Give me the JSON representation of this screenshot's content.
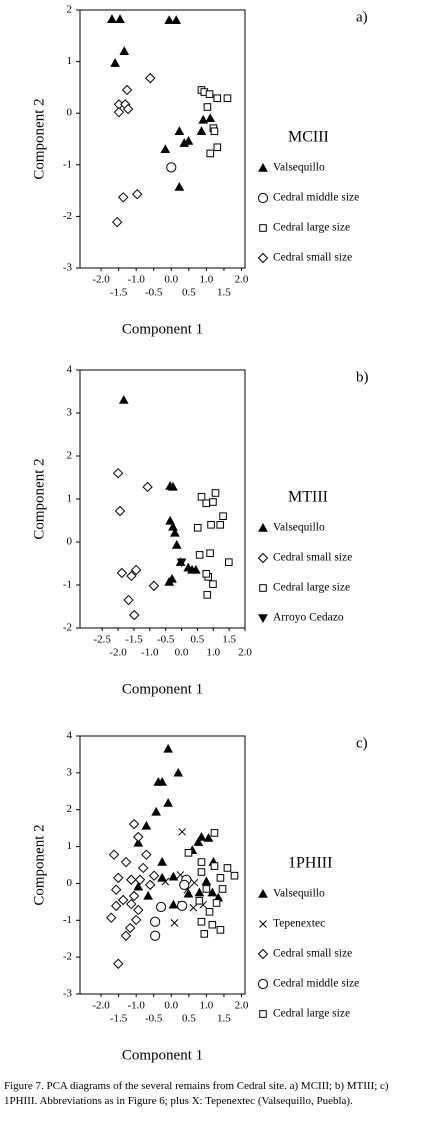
{
  "chart_data": [
    {
      "type": "scatter",
      "panel_label": "a)",
      "legend_title": "MCIII",
      "x_label": "Component  1",
      "y_label": "Component  2",
      "xlim": [
        -2.6,
        2.1
      ],
      "ylim": [
        -3,
        2
      ],
      "xticks": [
        {
          "value": -2,
          "label": "-2.0"
        },
        {
          "value": -1.5,
          "label": "-1.5"
        },
        {
          "value": -1,
          "label": "-1.0"
        },
        {
          "value": -0.5,
          "label": "-0.5"
        },
        {
          "value": 0,
          "label": "0.0"
        },
        {
          "value": 0.5,
          "label": "0.5"
        },
        {
          "value": 1,
          "label": "1.0"
        },
        {
          "value": 1.5,
          "label": "1.5"
        },
        {
          "value": 2,
          "label": "2.0"
        }
      ],
      "yticks": [
        2,
        1,
        0,
        -1,
        -2,
        -3
      ],
      "series": [
        {
          "name": "Valsequillo",
          "marker": "triangle",
          "color": "#000000",
          "x": [
            -1.69,
            -1.46,
            -0.06,
            0.14,
            -1.34,
            -1.6,
            0.23,
            0.37,
            0.49,
            -0.17,
            0.86,
            0.91,
            1.11,
            0.23
          ],
          "values": [
            1.82,
            1.82,
            1.8,
            1.8,
            1.2,
            0.97,
            -0.35,
            -0.58,
            -0.54,
            -0.7,
            -0.35,
            -0.13,
            -0.1,
            -1.43
          ]
        },
        {
          "name": "Cedral middle size",
          "marker": "circle",
          "color": "#000000",
          "x": [
            0
          ],
          "values": [
            -1.05
          ]
        },
        {
          "name": "Cedral large size",
          "marker": "square",
          "color": "#000000",
          "x": [
            0.86,
            0.94,
            1.09,
            1.31,
            1.6,
            1.03,
            1.2,
            1.23,
            1.11,
            1.31
          ],
          "values": [
            0.45,
            0.41,
            0.37,
            0.29,
            0.29,
            0.12,
            -0.29,
            -0.35,
            -0.78,
            -0.66
          ]
        },
        {
          "name": "Cedral small size",
          "marker": "diamond",
          "color": "#000000",
          "x": [
            -1.26,
            -1.49,
            -1.31,
            -1.23,
            -1.49,
            -0.6,
            -1.37,
            -0.97,
            -1.54
          ],
          "values": [
            0.45,
            0.17,
            0.17,
            0.08,
            0.02,
            0.68,
            -1.63,
            -1.57,
            -2.11
          ]
        }
      ]
    },
    {
      "type": "scatter",
      "panel_label": "b)",
      "legend_title": "MTIII",
      "x_label": "Component  1",
      "y_label": "Component  2",
      "xlim": [
        -3.2,
        2.0
      ],
      "ylim": [
        -2,
        4
      ],
      "xticks": [
        {
          "value": -2.5,
          "label": "-2.5"
        },
        {
          "value": -2,
          "label": "-2.0"
        },
        {
          "value": -1.5,
          "label": "-1.5"
        },
        {
          "value": -1,
          "label": "-1.0"
        },
        {
          "value": -0.5,
          "label": "-0.5"
        },
        {
          "value": 0,
          "label": "0.0"
        },
        {
          "value": 0.5,
          "label": "0.5"
        },
        {
          "value": 1,
          "label": "1.0"
        },
        {
          "value": 1.5,
          "label": "1.5"
        },
        {
          "value": 2,
          "label": "2.0"
        }
      ],
      "yticks": [
        4,
        3,
        2,
        1,
        0,
        -1,
        -2
      ],
      "series": [
        {
          "name": "Valsequillo",
          "marker": "triangle",
          "color": "#000000",
          "x": [
            -1.82,
            -0.36,
            -0.27,
            -0.36,
            -0.27,
            -0.21,
            -0.15,
            -0.03,
            0.21,
            0.33,
            0.45,
            -0.39,
            -0.3
          ],
          "values": [
            3.3,
            1.3,
            1.28,
            0.49,
            0.35,
            0.21,
            -0.07,
            -0.47,
            -0.6,
            -0.65,
            -0.65,
            -0.93,
            -0.86
          ]
        },
        {
          "name": "Cedral small size",
          "marker": "diamond",
          "color": "#000000",
          "x": [
            -2.0,
            -1.94,
            -1.07,
            -1.88,
            -1.58,
            -1.43,
            -0.87,
            -1.67,
            -1.49
          ],
          "values": [
            1.6,
            0.72,
            1.28,
            -0.72,
            -0.79,
            -0.65,
            -1.02,
            -1.35,
            -1.7
          ]
        },
        {
          "name": "Cedral large size",
          "marker": "square",
          "color": "#000000",
          "x": [
            0.63,
            0.78,
            1.07,
            0.99,
            1.31,
            1.22,
            0.51,
            0.93,
            0.57,
            0.9,
            1.49,
            0.84,
            0.99,
            0.81,
            0.78
          ],
          "values": [
            1.05,
            0.9,
            1.14,
            0.93,
            0.6,
            0.4,
            0.33,
            0.4,
            -0.3,
            -0.26,
            -0.47,
            -0.81,
            -0.98,
            -1.23,
            -0.74
          ]
        },
        {
          "name": "Arroyo Cedazo",
          "marker": "triangle-down",
          "color": "#000000",
          "x": [
            0
          ],
          "values": [
            -0.47
          ]
        }
      ]
    },
    {
      "type": "scatter",
      "panel_label": "c)",
      "legend_title": "1PHIII",
      "x_label": "Component  1",
      "y_label": "Component  2",
      "xlim": [
        -2.6,
        2.1
      ],
      "ylim": [
        -3,
        4
      ],
      "xticks": [
        {
          "value": -2,
          "label": "-2.0"
        },
        {
          "value": -1.5,
          "label": "-1.5"
        },
        {
          "value": -1,
          "label": "-1.0"
        },
        {
          "value": -0.5,
          "label": "-0.5"
        },
        {
          "value": 0,
          "label": "0.0"
        },
        {
          "value": 0.5,
          "label": "0.5"
        },
        {
          "value": 1,
          "label": "1.0"
        },
        {
          "value": 1.5,
          "label": "1.5"
        },
        {
          "value": 2,
          "label": "2.0"
        }
      ],
      "yticks": [
        4,
        3,
        2,
        1,
        0,
        -1,
        -2,
        -3
      ],
      "series": [
        {
          "name": "Valsequillo",
          "marker": "triangle",
          "color": "#000000",
          "x": [
            -0.09,
            -0.37,
            -0.26,
            0.2,
            -0.09,
            -0.43,
            -0.71,
            -0.94,
            -0.26,
            0.6,
            0.77,
            0.86,
            1.06,
            1.2,
            0.06,
            -0.26,
            -0.94,
            -0.66,
            0.06,
            0.49,
            0.8,
            1.0,
            1.17,
            1.34
          ],
          "values": [
            3.65,
            2.75,
            2.75,
            3.0,
            2.18,
            1.94,
            1.56,
            1.1,
            0.58,
            0.9,
            1.12,
            1.26,
            1.23,
            0.58,
            0.18,
            0.15,
            -0.09,
            -0.34,
            -0.58,
            -0.28,
            -0.25,
            0.05,
            -0.25,
            -0.39
          ]
        },
        {
          "name": "Tepenextec",
          "marker": "x",
          "color": "#000000",
          "x": [
            0.31,
            0.26,
            -0.17,
            0.66,
            0.29,
            0.09,
            0.63,
            0.91,
            0.46
          ],
          "values": [
            1.4,
            0.23,
            0.05,
            0.02,
            -0.58,
            -1.07,
            -0.66,
            -0.58,
            -0.17
          ]
        },
        {
          "name": "Cedral small size",
          "marker": "diamond",
          "color": "#000000",
          "x": [
            -1.63,
            -1.29,
            -1.06,
            -0.94,
            -0.71,
            -0.49,
            -1.51,
            -1.14,
            -0.89,
            -1.57,
            -1.37,
            -1.14,
            -1.71,
            -0.94,
            -1.17,
            -1.0,
            -1.29,
            -1.51,
            -0.6,
            -0.8,
            -1.57,
            -1.06
          ],
          "values": [
            0.78,
            0.58,
            1.61,
            1.26,
            0.78,
            0.21,
            0.15,
            0.1,
            0.1,
            -0.17,
            -0.45,
            -0.56,
            -0.93,
            -0.72,
            -1.21,
            -0.99,
            -1.42,
            -2.18,
            -0.04,
            0.42,
            -0.61,
            -0.34
          ]
        },
        {
          "name": "Cedral middle size",
          "marker": "circle",
          "color": "#000000",
          "x": [
            0.43,
            0.37,
            -0.29,
            0.31,
            -0.46,
            -0.46
          ],
          "values": [
            0.1,
            -0.04,
            -0.64,
            -0.61,
            -1.04,
            -1.42
          ]
        },
        {
          "name": "Cedral large size",
          "marker": "square",
          "color": "#000000",
          "x": [
            1.23,
            0.49,
            0.86,
            1.23,
            1.6,
            1.8,
            1.4,
            0.86,
            1.0,
            1.46,
            0.8,
            1.29,
            1.09,
            0.86,
            1.17,
            1.4,
            0.94
          ],
          "values": [
            1.37,
            0.83,
            0.58,
            0.47,
            0.42,
            0.21,
            0.15,
            0.31,
            -0.15,
            -0.15,
            -0.47,
            -0.53,
            -0.77,
            -1.04,
            -1.12,
            -1.26,
            -1.37
          ]
        }
      ]
    }
  ],
  "caption": "Figure 7. PCA diagrams of the several remains from Cedral site. a) MCIII; b) MTIII; c) 1PHIII. Abbreviations as in Figure 6; plus X: Tepenextec (Valsequillo, Puebla)."
}
